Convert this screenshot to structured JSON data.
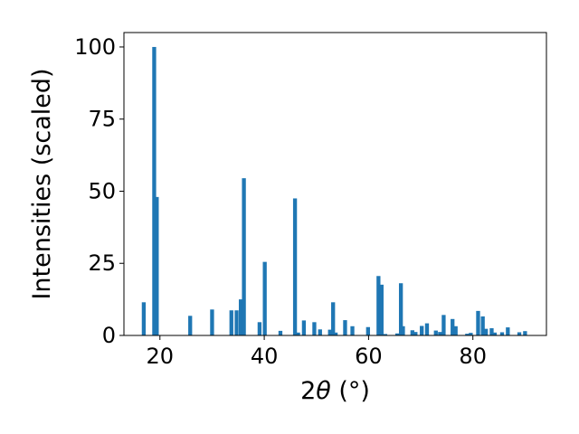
{
  "chart_data": {
    "type": "bar",
    "xlabel_parts": {
      "prefix": "2",
      "symbol": "θ",
      "suffix": " (°)"
    },
    "ylabel": "Intensities (scaled)",
    "xlim": [
      13.1,
      94.1
    ],
    "ylim": [
      0,
      105
    ],
    "xticks": [
      20,
      40,
      60,
      80
    ],
    "yticks": [
      0,
      25,
      50,
      75,
      100
    ],
    "grid": false,
    "bar_width_deg": 0.75,
    "bar_color": "#1f77b4",
    "series": [
      {
        "x": [
          16.9,
          18.9,
          19.4,
          25.8,
          30.0,
          33.7,
          34.7,
          35.5,
          36.1,
          39.1,
          40.1,
          43.1,
          45.9,
          46.5,
          47.6,
          49.6,
          50.7,
          52.6,
          53.2,
          53.7,
          55.5,
          56.9,
          59.9,
          61.9,
          62.5,
          63.2,
          65.5,
          66.2,
          66.6,
          68.4,
          69.0,
          70.2,
          71.2,
          72.9,
          73.7,
          74.4,
          76.1,
          76.7,
          78.9,
          79.6,
          81.0,
          81.9,
          82.5,
          83.6,
          84.2,
          85.6,
          86.7,
          88.9,
          90.0
        ],
        "y": [
          11.5,
          100.0,
          48.0,
          6.8,
          9.0,
          8.7,
          8.7,
          12.5,
          54.5,
          4.6,
          25.5,
          1.6,
          47.5,
          1.0,
          5.2,
          4.6,
          2.1,
          2.0,
          11.5,
          1.0,
          5.3,
          3.2,
          2.9,
          20.6,
          17.6,
          0.5,
          0.7,
          18.1,
          3.2,
          1.8,
          1.2,
          3.3,
          4.2,
          1.7,
          1.2,
          7.1,
          5.7,
          3.2,
          0.6,
          0.9,
          8.5,
          6.6,
          2.3,
          2.5,
          1.0,
          1.1,
          2.8,
          1.1,
          1.5
        ]
      }
    ]
  }
}
